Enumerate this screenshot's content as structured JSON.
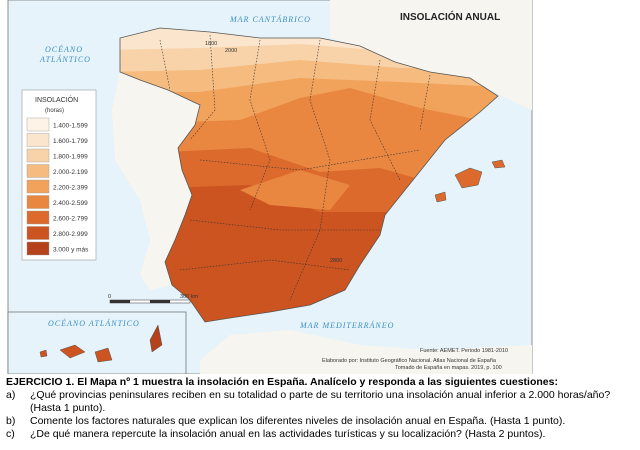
{
  "map": {
    "title": "INSOLACIÓN ANUAL",
    "sea_labels": [
      "MAR CANTÁBRICO",
      "OCÉANO",
      "ATLÁNTICO",
      "MAR MEDITERRÁNEO",
      "OCÉANO ATLÁNTICO"
    ],
    "contour_labels": [
      "1800",
      "2000",
      "2800"
    ],
    "legend": {
      "title": "INSOLACIÓN",
      "subtitle": "(horas)",
      "items": [
        {
          "label": "1.400-1.599",
          "color": "#fdf3e6"
        },
        {
          "label": "1.600-1.799",
          "color": "#fbe5cc"
        },
        {
          "label": "1.800-1.999",
          "color": "#f8d3aa"
        },
        {
          "label": "2.000-2.199",
          "color": "#f5bb7f"
        },
        {
          "label": "2.200-2.399",
          "color": "#f1a35c"
        },
        {
          "label": "2.400-2.599",
          "color": "#e98640"
        },
        {
          "label": "2.600-2.799",
          "color": "#dc6a2c"
        },
        {
          "label": "2.800-2.999",
          "color": "#cc5420"
        },
        {
          "label": "3.000 y más",
          "color": "#b5421a"
        }
      ]
    },
    "scale": [
      "0",
      "300 km"
    ],
    "source": "Fuente: AEMET. Periodo 1981-2010",
    "credits": [
      "Elaborado por: Instituto Geográfico Nacional. Atlas Nacional de España",
      "Tomado de España en mapas. 2019, p. 100"
    ]
  },
  "exercise": {
    "title": "EJERCICIO 1.  El Mapa nº 1 muestra la insolación en España. Analícelo y responda a las siguientes cuestiones:",
    "questions": [
      {
        "marker": "a)",
        "text": "¿Qué provincias peninsulares reciben en su totalidad o parte de su territorio una insolación anual inferior a 2.000 horas/año? (Hasta 1 punto)."
      },
      {
        "marker": "b)",
        "text": "Comente los factores naturales que explican los diferentes niveles de insolación anual en España. (Hasta 1 punto)."
      },
      {
        "marker": "c)",
        "text": "¿De qué manera repercute la insolación anual en las actividades turísticas y su localización? (Hasta 2 puntos)."
      }
    ]
  }
}
